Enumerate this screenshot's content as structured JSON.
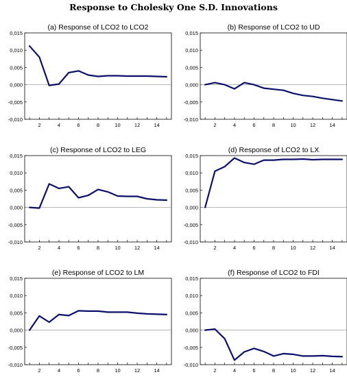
{
  "title": "Response to Cholesky One S.D. Innovations",
  "chart_data": [
    {
      "type": "line",
      "title": "(a) Response of LCO2 to LCO2",
      "x": [
        1,
        2,
        3,
        4,
        5,
        6,
        7,
        8,
        9,
        10,
        11,
        12,
        13,
        14,
        15
      ],
      "series": [
        {
          "values": [
            0.0112,
            0.008,
            -0.0002,
            0.0002,
            0.0035,
            0.004,
            0.0028,
            0.0024,
            0.0026,
            0.0026,
            0.0025,
            0.0025,
            0.0025,
            0.0024,
            0.0023
          ]
        }
      ],
      "xticks": [
        2,
        4,
        6,
        8,
        10,
        12,
        14
      ],
      "xtick_labels": [
        "2",
        "4",
        "6",
        "8",
        "10",
        "12",
        "14"
      ],
      "ylim": [
        -0.01,
        0.015
      ],
      "yticks": [
        -0.01,
        -0.005,
        0,
        0.005,
        0.01,
        0.015
      ],
      "ytick_labels": [
        "-0,010",
        "-0,005",
        "0,000",
        "0,005",
        "0,010",
        "0,015"
      ],
      "line_color": "#0a0f6b"
    },
    {
      "type": "line",
      "title": "(b) Response of LCO2 to UD",
      "x": [
        1,
        2,
        3,
        4,
        5,
        6,
        7,
        8,
        9,
        10,
        11,
        12,
        13,
        14,
        15
      ],
      "series": [
        {
          "values": [
            0.0,
            0.0006,
            0.0,
            -0.0012,
            0.0006,
            0.0,
            -0.001,
            -0.0013,
            -0.0016,
            -0.0025,
            -0.0031,
            -0.0034,
            -0.0039,
            -0.0043,
            -0.0047
          ]
        }
      ],
      "xticks": [
        2,
        4,
        6,
        8,
        10,
        12,
        14
      ],
      "xtick_labels": [
        "2",
        "4",
        "6",
        "8",
        "10",
        "12",
        "14"
      ],
      "ylim": [
        -0.01,
        0.015
      ],
      "yticks": [
        -0.01,
        -0.005,
        0,
        0.005,
        0.01,
        0.015
      ],
      "ytick_labels": [
        "-0,010",
        "-0,005",
        "0,000",
        "0,005",
        "0,010",
        "0,015"
      ],
      "line_color": "#0a0f6b"
    },
    {
      "type": "line",
      "title": "(c) Response of LCO2 to LEG",
      "x": [
        1,
        2,
        3,
        4,
        5,
        6,
        7,
        8,
        9,
        10,
        11,
        12,
        13,
        14,
        15
      ],
      "series": [
        {
          "values": [
            0.0,
            -0.0002,
            0.0068,
            0.0055,
            0.006,
            0.0028,
            0.0035,
            0.0052,
            0.0045,
            0.0033,
            0.0032,
            0.0032,
            0.0025,
            0.0022,
            0.0021
          ]
        }
      ],
      "xticks": [
        2,
        4,
        6,
        8,
        10,
        12,
        14
      ],
      "xtick_labels": [
        "2",
        "4",
        "6",
        "8",
        "10",
        "12",
        "14"
      ],
      "ylim": [
        -0.01,
        0.015
      ],
      "yticks": [
        -0.01,
        -0.005,
        0,
        0.005,
        0.01,
        0.015
      ],
      "ytick_labels": [
        "-0,010",
        "-0,005",
        "0,000",
        "0,005",
        "0,010",
        "0,015"
      ],
      "line_color": "#0a0f6b"
    },
    {
      "type": "line",
      "title": "(d) Response of LCO2 to LX",
      "x": [
        1,
        2,
        3,
        4,
        5,
        6,
        7,
        8,
        9,
        10,
        11,
        12,
        13,
        14,
        15
      ],
      "series": [
        {
          "values": [
            0.0,
            0.0105,
            0.0118,
            0.0143,
            0.013,
            0.0125,
            0.0137,
            0.0137,
            0.0139,
            0.0139,
            0.014,
            0.0138,
            0.0139,
            0.0139,
            0.0139
          ]
        }
      ],
      "xticks": [
        2,
        4,
        6,
        8,
        10,
        12,
        14
      ],
      "xtick_labels": [
        "2",
        "4",
        "6",
        "8",
        "10",
        "12",
        "14"
      ],
      "ylim": [
        -0.01,
        0.015
      ],
      "yticks": [
        -0.01,
        -0.005,
        0,
        0.005,
        0.01,
        0.015
      ],
      "ytick_labels": [
        "-0,010",
        "-0,005",
        "0,000",
        "0,005",
        "0,010",
        "0,015"
      ],
      "line_color": "#0a0f6b"
    },
    {
      "type": "line",
      "title": "(e) Response of LCO2 to LM",
      "x": [
        1,
        2,
        3,
        4,
        5,
        6,
        7,
        8,
        9,
        10,
        11,
        12,
        13,
        14,
        15
      ],
      "series": [
        {
          "values": [
            0.0,
            0.0041,
            0.0023,
            0.0045,
            0.0042,
            0.0056,
            0.0055,
            0.0055,
            0.0052,
            0.0052,
            0.0052,
            0.0049,
            0.0047,
            0.0046,
            0.0045
          ]
        }
      ],
      "xticks": [
        2,
        4,
        6,
        8,
        10,
        12,
        14
      ],
      "xtick_labels": [
        "2",
        "4",
        "6",
        "8",
        "10",
        "12",
        "14"
      ],
      "ylim": [
        -0.01,
        0.015
      ],
      "yticks": [
        -0.01,
        -0.005,
        0,
        0.005,
        0.01,
        0.015
      ],
      "ytick_labels": [
        "-0,010",
        "-0,005",
        "0,000",
        "0,005",
        "0,010",
        "0,015"
      ],
      "line_color": "#0a0f6b"
    },
    {
      "type": "line",
      "title": "(f) Response of LCO2 to FDI",
      "x": [
        1,
        2,
        3,
        4,
        5,
        6,
        7,
        8,
        9,
        10,
        11,
        12,
        13,
        14,
        15
      ],
      "series": [
        {
          "values": [
            0.0,
            0.0003,
            -0.0025,
            -0.0087,
            -0.0063,
            -0.0053,
            -0.0062,
            -0.0075,
            -0.0068,
            -0.007,
            -0.0075,
            -0.0075,
            -0.0074,
            -0.0076,
            -0.0077
          ]
        }
      ],
      "xticks": [
        2,
        4,
        6,
        8,
        10,
        12,
        14
      ],
      "xtick_labels": [
        "2",
        "4",
        "6",
        "8",
        "10",
        "12",
        "14"
      ],
      "ylim": [
        -0.01,
        0.015
      ],
      "yticks": [
        -0.01,
        -0.005,
        0,
        0.005,
        0.01,
        0.015
      ],
      "ytick_labels": [
        "-0,010",
        "-0,005",
        "0,000",
        "0,005",
        "0,010",
        "0,015"
      ],
      "line_color": "#0a0f6b"
    }
  ]
}
